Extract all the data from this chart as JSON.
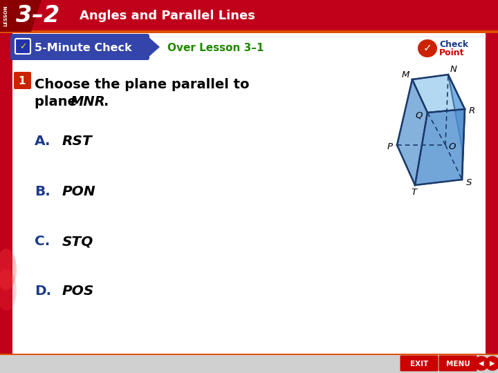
{
  "title_lesson": "3–2",
  "title_text": "Angles and Parallel Lines",
  "header_bg": "#c0001a",
  "header_accent": "#e05000",
  "check_banner_bg": "#3344aa",
  "check_banner_text": "5-Minute Check",
  "over_lesson_text": "Over Lesson 3–1",
  "over_lesson_color": "#228800",
  "question_number": "1",
  "question_line1": "Choose the plane parallel to",
  "question_line2_pre": "plane ",
  "question_italic": "MNR",
  "question_period": ".",
  "answer_letter_color": "#1a3a8a",
  "answers": [
    {
      "letter": "A.",
      "text": "RST"
    },
    {
      "letter": "B.",
      "text": "PON"
    },
    {
      "letter": "C.",
      "text": "STQ"
    },
    {
      "letter": "D.",
      "text": "POS"
    }
  ],
  "body_bg": "#ffffff",
  "side_bg": "#c0001a",
  "cube_front_color": "#4488cc",
  "cube_top_color": "#99ccee",
  "cube_right_color": "#5599dd",
  "cube_edge_color": "#1a3a6a",
  "checkpoint_red": "#cc0000",
  "checkpoint_blue": "#1a3a8a",
  "bottom_bar_bg": "#d0d0d0"
}
